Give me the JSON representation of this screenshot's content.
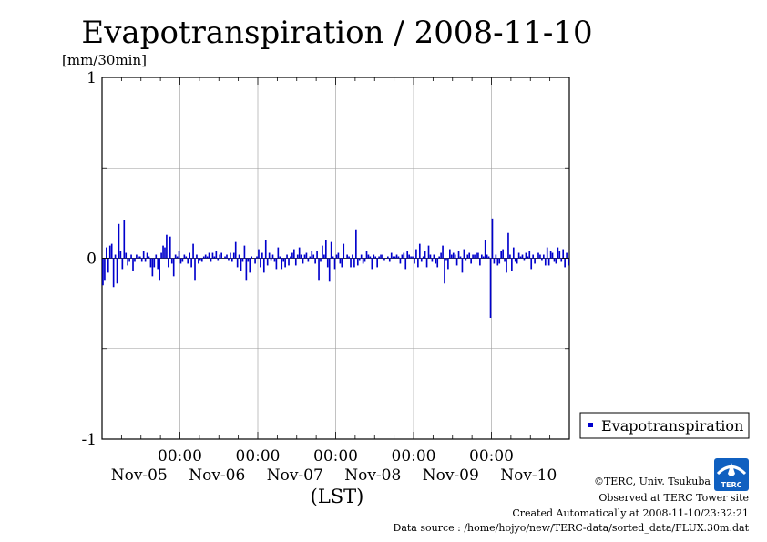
{
  "chart_data": {
    "type": "bar",
    "title": "Evapotranspiration / 2008-11-10",
    "ylabel": "[mm/30min]",
    "xlabel": "(LST)",
    "ylim": [
      -1,
      1
    ],
    "y_ticks": [
      "1",
      "0",
      "-1"
    ],
    "y_tick_values": [
      1,
      0,
      -1
    ],
    "x_tick_times": [
      "00:00",
      "00:00",
      "00:00",
      "00:00",
      "00:00"
    ],
    "x_tick_dates": [
      "Nov-05",
      "Nov-06",
      "Nov-07",
      "Nov-08",
      "Nov-09",
      "Nov-10"
    ],
    "xlim_days": [
      0,
      6
    ],
    "grid": true,
    "legend_position": "right",
    "series": [
      {
        "name": "Evapotranspiration",
        "color": "#0000cc",
        "values": [
          -0.15,
          -0.12,
          0.06,
          -0.08,
          0.07,
          0.08,
          -0.16,
          0.02,
          -0.14,
          0.19,
          0.04,
          -0.06,
          0.21,
          0.03,
          -0.04,
          -0.02,
          0.02,
          -0.07,
          -0.02,
          0.02,
          0.01,
          0.01,
          -0.02,
          0.04,
          -0.02,
          0.03,
          0.01,
          -0.05,
          -0.1,
          -0.05,
          0.02,
          -0.06,
          -0.12,
          0.03,
          0.07,
          0.06,
          0.13,
          -0.05,
          0.12,
          -0.03,
          -0.1,
          0.02,
          0.01,
          0.04,
          -0.03,
          -0.02,
          0.02,
          0.01,
          -0.03,
          0.03,
          -0.05,
          0.08,
          -0.12,
          0.02,
          -0.03,
          -0.01,
          -0.02,
          0.01,
          0.02,
          0.01,
          0.03,
          -0.02,
          0.03,
          0.01,
          0.04,
          -0.01,
          0.02,
          0.03,
          0.0,
          0.01,
          0.02,
          -0.01,
          0.03,
          -0.02,
          0.03,
          0.09,
          -0.05,
          0.02,
          -0.07,
          -0.02,
          0.07,
          -0.12,
          -0.02,
          -0.08,
          0.01,
          0.0,
          -0.03,
          0.01,
          0.05,
          -0.05,
          0.03,
          -0.08,
          0.1,
          -0.04,
          0.03,
          -0.01,
          0.02,
          -0.02,
          -0.06,
          0.06,
          0.01,
          -0.06,
          -0.02,
          -0.05,
          0.02,
          -0.04,
          0.01,
          0.03,
          0.05,
          -0.04,
          0.02,
          0.06,
          0.02,
          -0.03,
          0.02,
          0.03,
          -0.02,
          0.01,
          0.04,
          0.02,
          -0.03,
          0.04,
          -0.12,
          -0.02,
          0.07,
          0.02,
          0.1,
          -0.05,
          -0.13,
          0.09,
          0.01,
          -0.06,
          0.02,
          0.03,
          -0.03,
          -0.05,
          0.08,
          0.0,
          0.02,
          0.01,
          -0.05,
          0.02,
          -0.05,
          0.16,
          -0.04,
          -0.01,
          0.02,
          -0.03,
          -0.02,
          0.04,
          0.02,
          0.01,
          -0.06,
          0.02,
          0.01,
          -0.05,
          0.01,
          0.02,
          0.02,
          -0.01,
          0.0,
          0.01,
          -0.02,
          0.03,
          0.01,
          0.01,
          0.02,
          0.01,
          -0.03,
          0.02,
          0.03,
          -0.06,
          0.04,
          0.02,
          0.01,
          0.01,
          -0.03,
          0.05,
          -0.05,
          0.08,
          -0.02,
          0.01,
          0.04,
          -0.05,
          0.07,
          0.02,
          -0.02,
          0.02,
          -0.03,
          -0.05,
          0.01,
          0.03,
          0.07,
          -0.14,
          -0.01,
          -0.06,
          0.05,
          0.02,
          0.03,
          0.02,
          -0.04,
          0.04,
          0.01,
          -0.08,
          0.05,
          -0.01,
          0.02,
          0.03,
          -0.03,
          0.02,
          0.02,
          0.03,
          0.03,
          -0.04,
          0.02,
          0.01,
          0.1,
          0.02,
          0.01,
          -0.33,
          0.22,
          -0.03,
          0.02,
          -0.04,
          -0.03,
          0.04,
          0.05,
          -0.02,
          -0.08,
          0.14,
          0.02,
          -0.07,
          0.06,
          -0.02,
          -0.03,
          0.03,
          0.01,
          0.02,
          -0.01,
          0.03,
          0.01,
          0.04,
          -0.06,
          0.02,
          -0.03,
          0.0,
          0.03,
          0.02,
          -0.01,
          0.02,
          -0.04,
          0.06,
          -0.04,
          0.04,
          0.03,
          -0.02,
          -0.03,
          0.06,
          0.04,
          -0.02,
          0.05,
          -0.05,
          0.03,
          -0.04
        ]
      }
    ]
  },
  "legend": {
    "label": "Evapotranspiration"
  },
  "footer": {
    "copyright": "©TERC, Univ. Tsukuba",
    "observed": "Observed at TERC Tower site",
    "created": "Created Automatically at 2008-11-10/23:32:21",
    "source": "Data source : /home/hojyo/new/TERC-data/sorted_data/FLUX.30m.dat"
  },
  "logo": {
    "text": "TERC",
    "color": "#1060c0"
  }
}
